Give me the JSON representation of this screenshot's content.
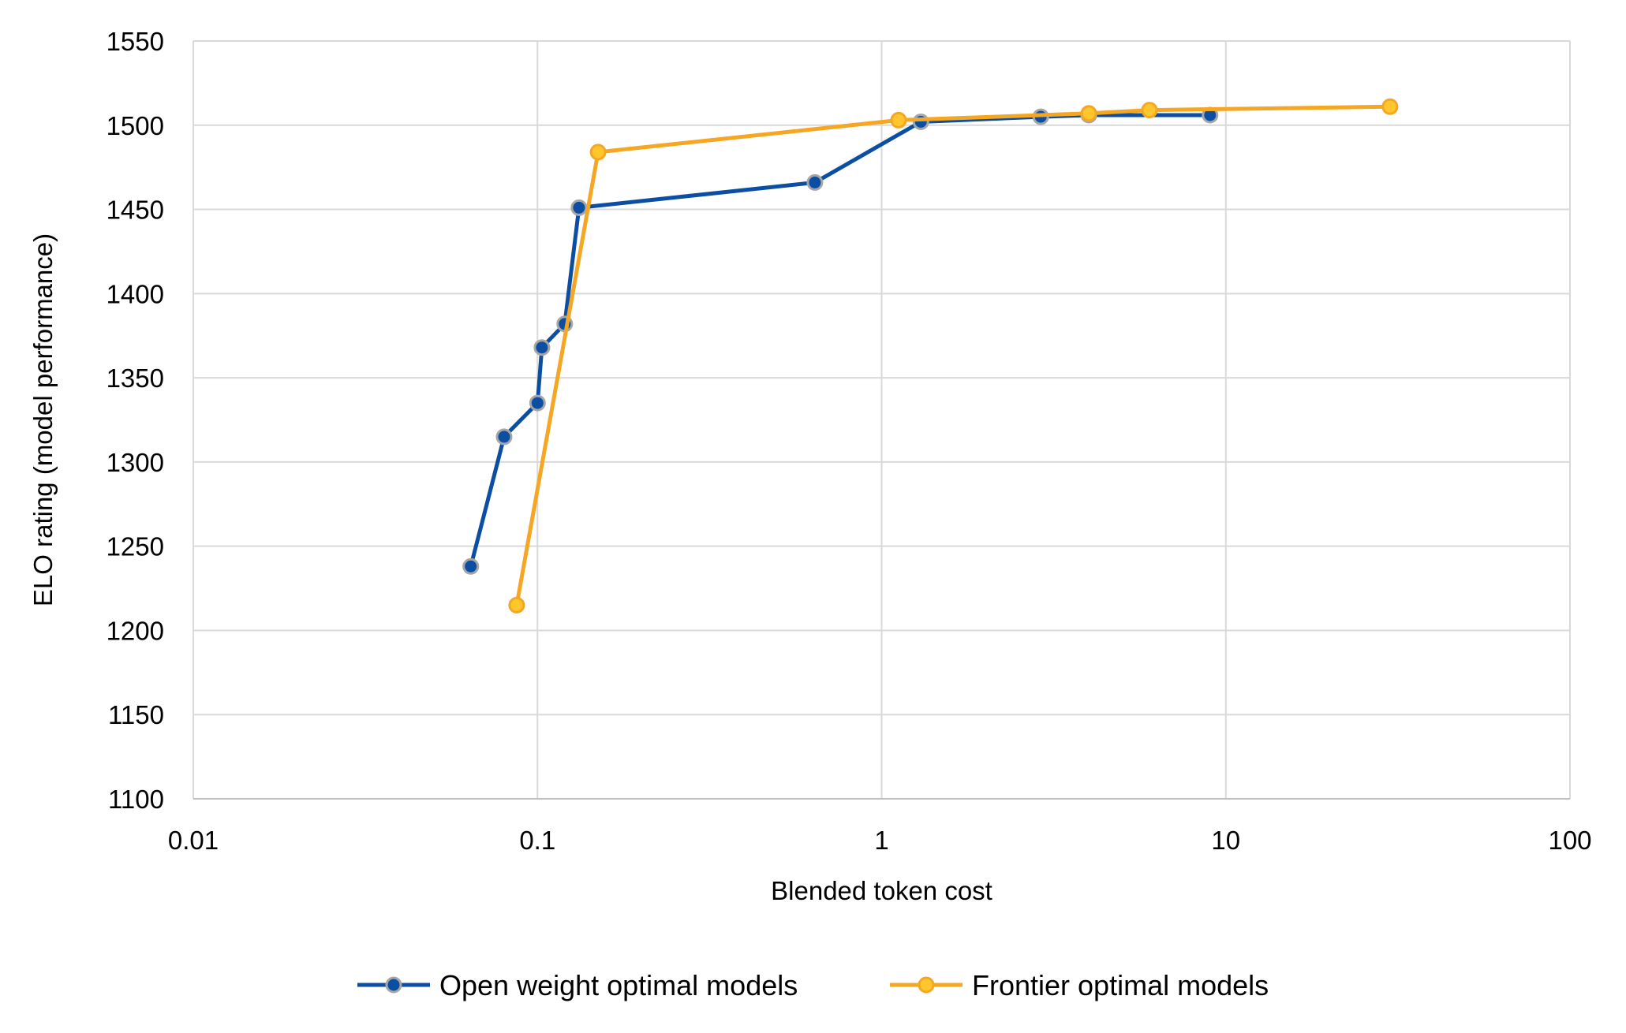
{
  "chart_data": {
    "type": "line",
    "title": "",
    "xlabel": "Blended token cost",
    "ylabel": "ELO rating (model performance)",
    "x_scale": "log",
    "xlim": [
      0.01,
      100
    ],
    "ylim": [
      1100,
      1550
    ],
    "x_ticks": [
      {
        "value": 0.01,
        "label": "0.01"
      },
      {
        "value": 0.1,
        "label": "0.1"
      },
      {
        "value": 1,
        "label": "1"
      },
      {
        "value": 10,
        "label": "10"
      },
      {
        "value": 100,
        "label": "100"
      }
    ],
    "y_ticks": [
      {
        "value": 1100,
        "label": "1100"
      },
      {
        "value": 1150,
        "label": "1150"
      },
      {
        "value": 1200,
        "label": "1200"
      },
      {
        "value": 1250,
        "label": "1250"
      },
      {
        "value": 1300,
        "label": "1300"
      },
      {
        "value": 1350,
        "label": "1350"
      },
      {
        "value": 1400,
        "label": "1400"
      },
      {
        "value": 1450,
        "label": "1450"
      },
      {
        "value": 1500,
        "label": "1500"
      },
      {
        "value": 1550,
        "label": "1550"
      }
    ],
    "grid": "on",
    "legend_position": "bottom",
    "series": [
      {
        "name": "Open weight optimal models",
        "color": "#0B4EA2",
        "marker_edge": "#A6A6A6",
        "points": [
          {
            "x": 0.064,
            "y": 1238
          },
          {
            "x": 0.08,
            "y": 1315
          },
          {
            "x": 0.1,
            "y": 1335
          },
          {
            "x": 0.103,
            "y": 1368
          },
          {
            "x": 0.12,
            "y": 1382
          },
          {
            "x": 0.132,
            "y": 1451
          },
          {
            "x": 0.64,
            "y": 1466
          },
          {
            "x": 1.3,
            "y": 1502
          },
          {
            "x": 2.9,
            "y": 1505
          },
          {
            "x": 4.0,
            "y": 1506
          },
          {
            "x": 9.0,
            "y": 1506
          }
        ]
      },
      {
        "name": "Frontier optimal models",
        "color": "#F5A623",
        "marker_fill": "#FFC72C",
        "points": [
          {
            "x": 0.087,
            "y": 1215
          },
          {
            "x": 0.15,
            "y": 1484
          },
          {
            "x": 1.12,
            "y": 1503
          },
          {
            "x": 4.0,
            "y": 1507
          },
          {
            "x": 6.0,
            "y": 1509
          },
          {
            "x": 30.0,
            "y": 1511
          }
        ]
      }
    ]
  }
}
